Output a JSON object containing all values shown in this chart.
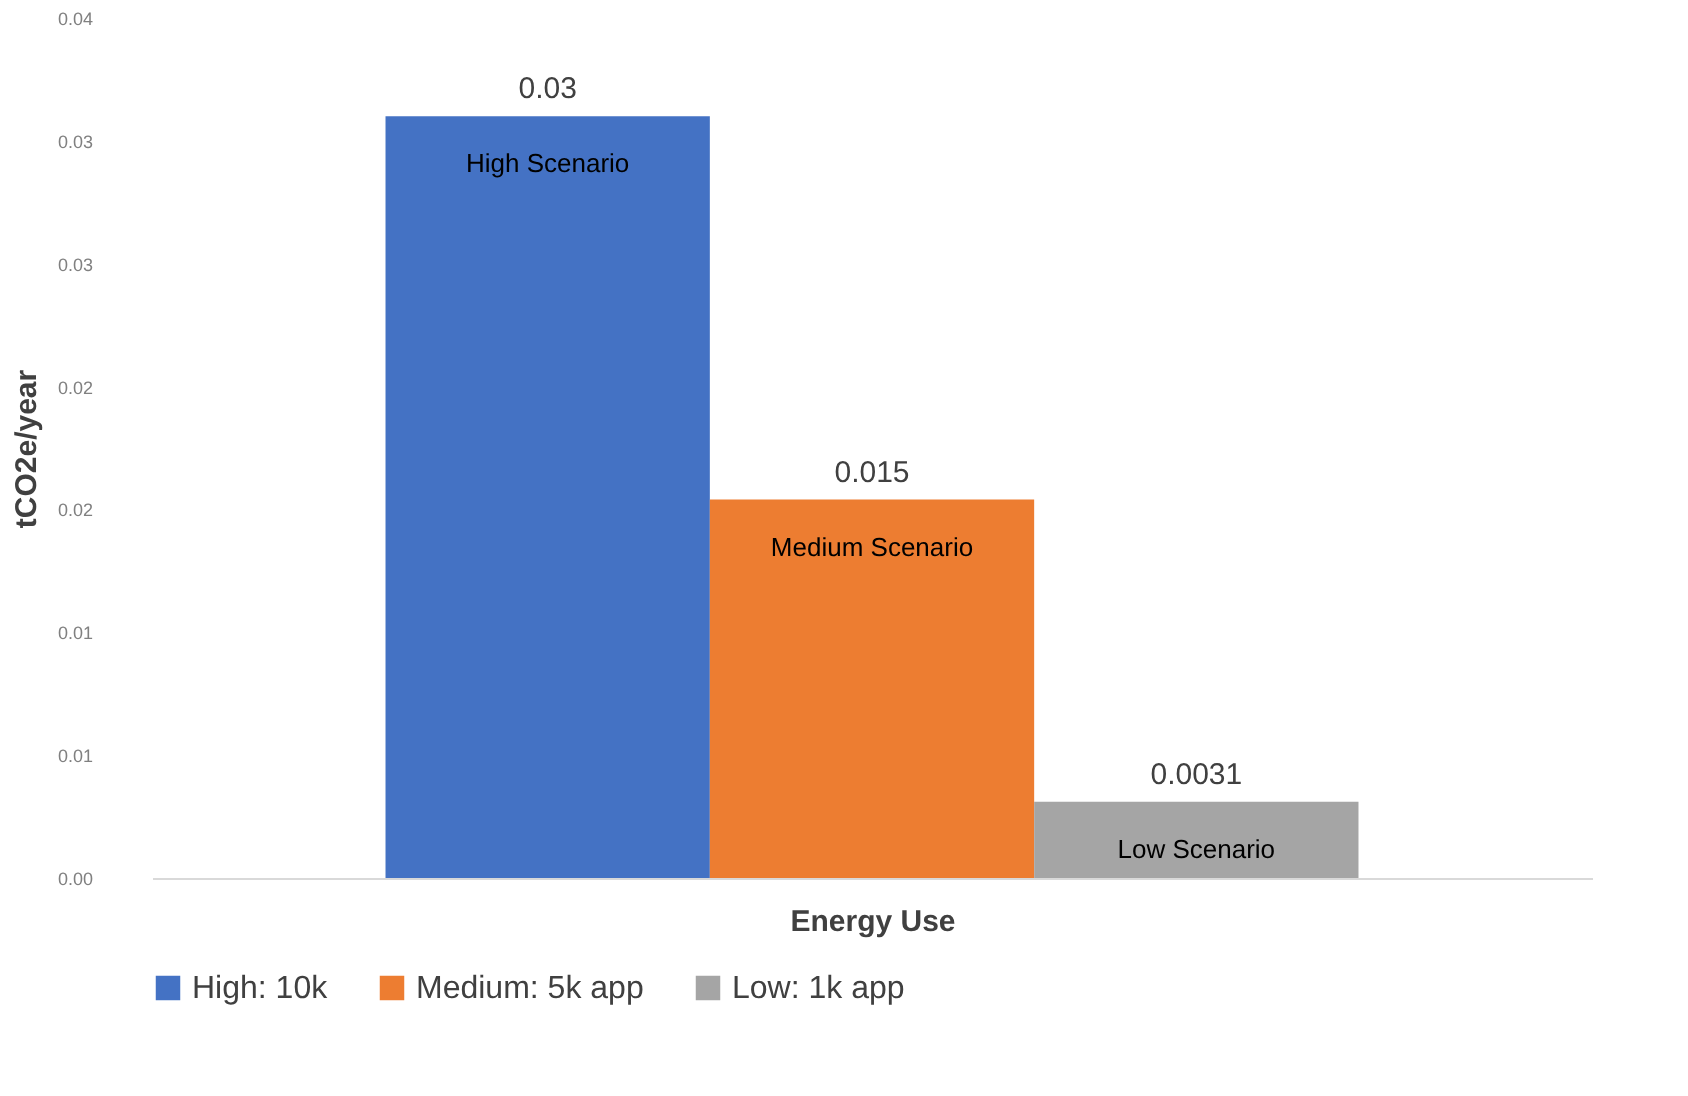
{
  "chart_data": {
    "type": "bar",
    "categories": [
      null
    ],
    "xlabel": "Energy Use",
    "ylabel": "tCO2e/year",
    "series": [
      {
        "name": "High: 10k",
        "color": "#4472c4",
        "values": [
          0.031
        ],
        "value_labels": [
          "0.03"
        ]
      },
      {
        "name": "Medium: 5k app",
        "color": "#ed7d31",
        "values": [
          0.0154
        ],
        "value_labels": [
          "0.015"
        ]
      },
      {
        "name": "Low: 1k app",
        "color": "#a5a5a5",
        "values": [
          0.0031
        ],
        "value_labels": [
          "0.0031"
        ]
      }
    ],
    "annotations": [
      "High Scenario",
      "Medium Scenario",
      "Low Scenario"
    ],
    "ylim": [
      0,
      0.035
    ],
    "yticks": [
      {
        "value": 0,
        "label": "0.00"
      },
      {
        "value": 0.005,
        "label": "0.01"
      },
      {
        "value": 0.01,
        "label": "0.01"
      },
      {
        "value": 0.015,
        "label": "0.02"
      },
      {
        "value": 0.02,
        "label": "0.02"
      },
      {
        "value": 0.025,
        "label": "0.03"
      },
      {
        "value": 0.03,
        "label": "0.03"
      },
      {
        "value": 0.035,
        "label": "0.04"
      }
    ],
    "grid": false,
    "legend": "bottom"
  }
}
